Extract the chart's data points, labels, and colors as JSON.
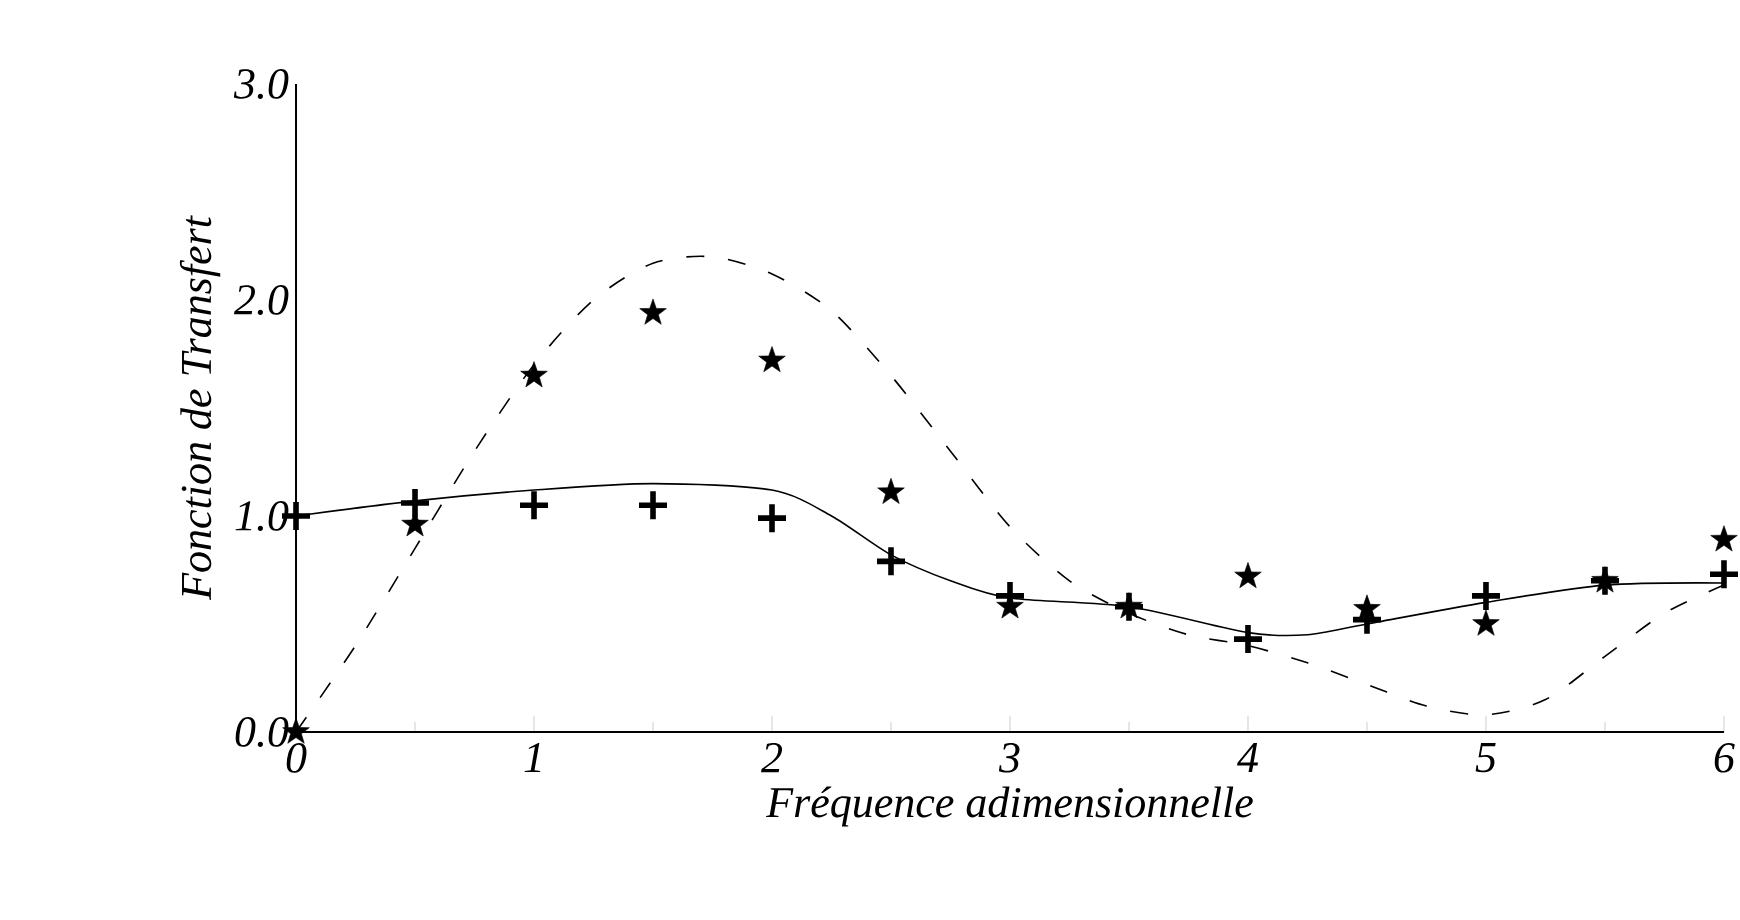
{
  "chart_data": {
    "type": "line",
    "xlabel": "Fréquence adimensionnelle",
    "ylabel": "Fonction de Transfert",
    "xlim": [
      0,
      6
    ],
    "ylim": [
      0,
      3
    ],
    "xticks": [
      0,
      1,
      2,
      3,
      4,
      5,
      6
    ],
    "yticks": [
      {
        "value": 0,
        "label": "0.0"
      },
      {
        "value": 1,
        "label": "1.0"
      },
      {
        "value": 2,
        "label": "2.0"
      },
      {
        "value": 3,
        "label": "3.0"
      }
    ],
    "series": [
      {
        "type": "scatter",
        "marker": "star",
        "color": "#000000",
        "x": [
          0,
          0.5,
          1,
          1.5,
          2,
          2.5,
          3,
          3.5,
          4,
          4.5,
          5,
          5.5,
          6
        ],
        "values": [
          0,
          0.96,
          1.65,
          1.94,
          1.72,
          1.11,
          0.58,
          0.58,
          0.72,
          0.57,
          0.5,
          0.7,
          0.89
        ]
      },
      {
        "type": "scatter",
        "marker": "cross",
        "color": "#000000",
        "x": [
          0,
          0.5,
          1,
          1.5,
          2,
          2.5,
          3,
          3.5,
          4,
          4.5,
          5,
          5.5,
          6
        ],
        "values": [
          1.0,
          1.06,
          1.05,
          1.05,
          0.99,
          0.79,
          0.63,
          0.58,
          0.43,
          0.52,
          0.63,
          0.7,
          0.73
        ]
      },
      {
        "line_style": "dashed",
        "marker": "none",
        "color": "#000000",
        "x": [
          0,
          0.25,
          0.5,
          0.75,
          1,
          1.25,
          1.5,
          1.75,
          2,
          2.25,
          2.5,
          2.75,
          3,
          3.25,
          3.5,
          3.75,
          4,
          4.25,
          4.5,
          4.75,
          5,
          5.25,
          5.5,
          5.75,
          6
        ],
        "values": [
          0,
          0.4,
          0.85,
          1.3,
          1.7,
          2.0,
          2.17,
          2.2,
          2.12,
          1.95,
          1.65,
          1.3,
          0.95,
          0.7,
          0.55,
          0.45,
          0.4,
          0.32,
          0.22,
          0.12,
          0.08,
          0.15,
          0.35,
          0.55,
          0.68
        ]
      },
      {
        "line_style": "solid",
        "marker": "none",
        "color": "#000000",
        "x": [
          0,
          0.5,
          1,
          1.5,
          2,
          2.25,
          2.5,
          2.75,
          3,
          3.5,
          4,
          4.25,
          4.5,
          5,
          5.5,
          6
        ],
        "values": [
          1.0,
          1.07,
          1.12,
          1.15,
          1.12,
          1.0,
          0.82,
          0.7,
          0.62,
          0.58,
          0.46,
          0.45,
          0.5,
          0.6,
          0.68,
          0.69
        ]
      }
    ]
  }
}
